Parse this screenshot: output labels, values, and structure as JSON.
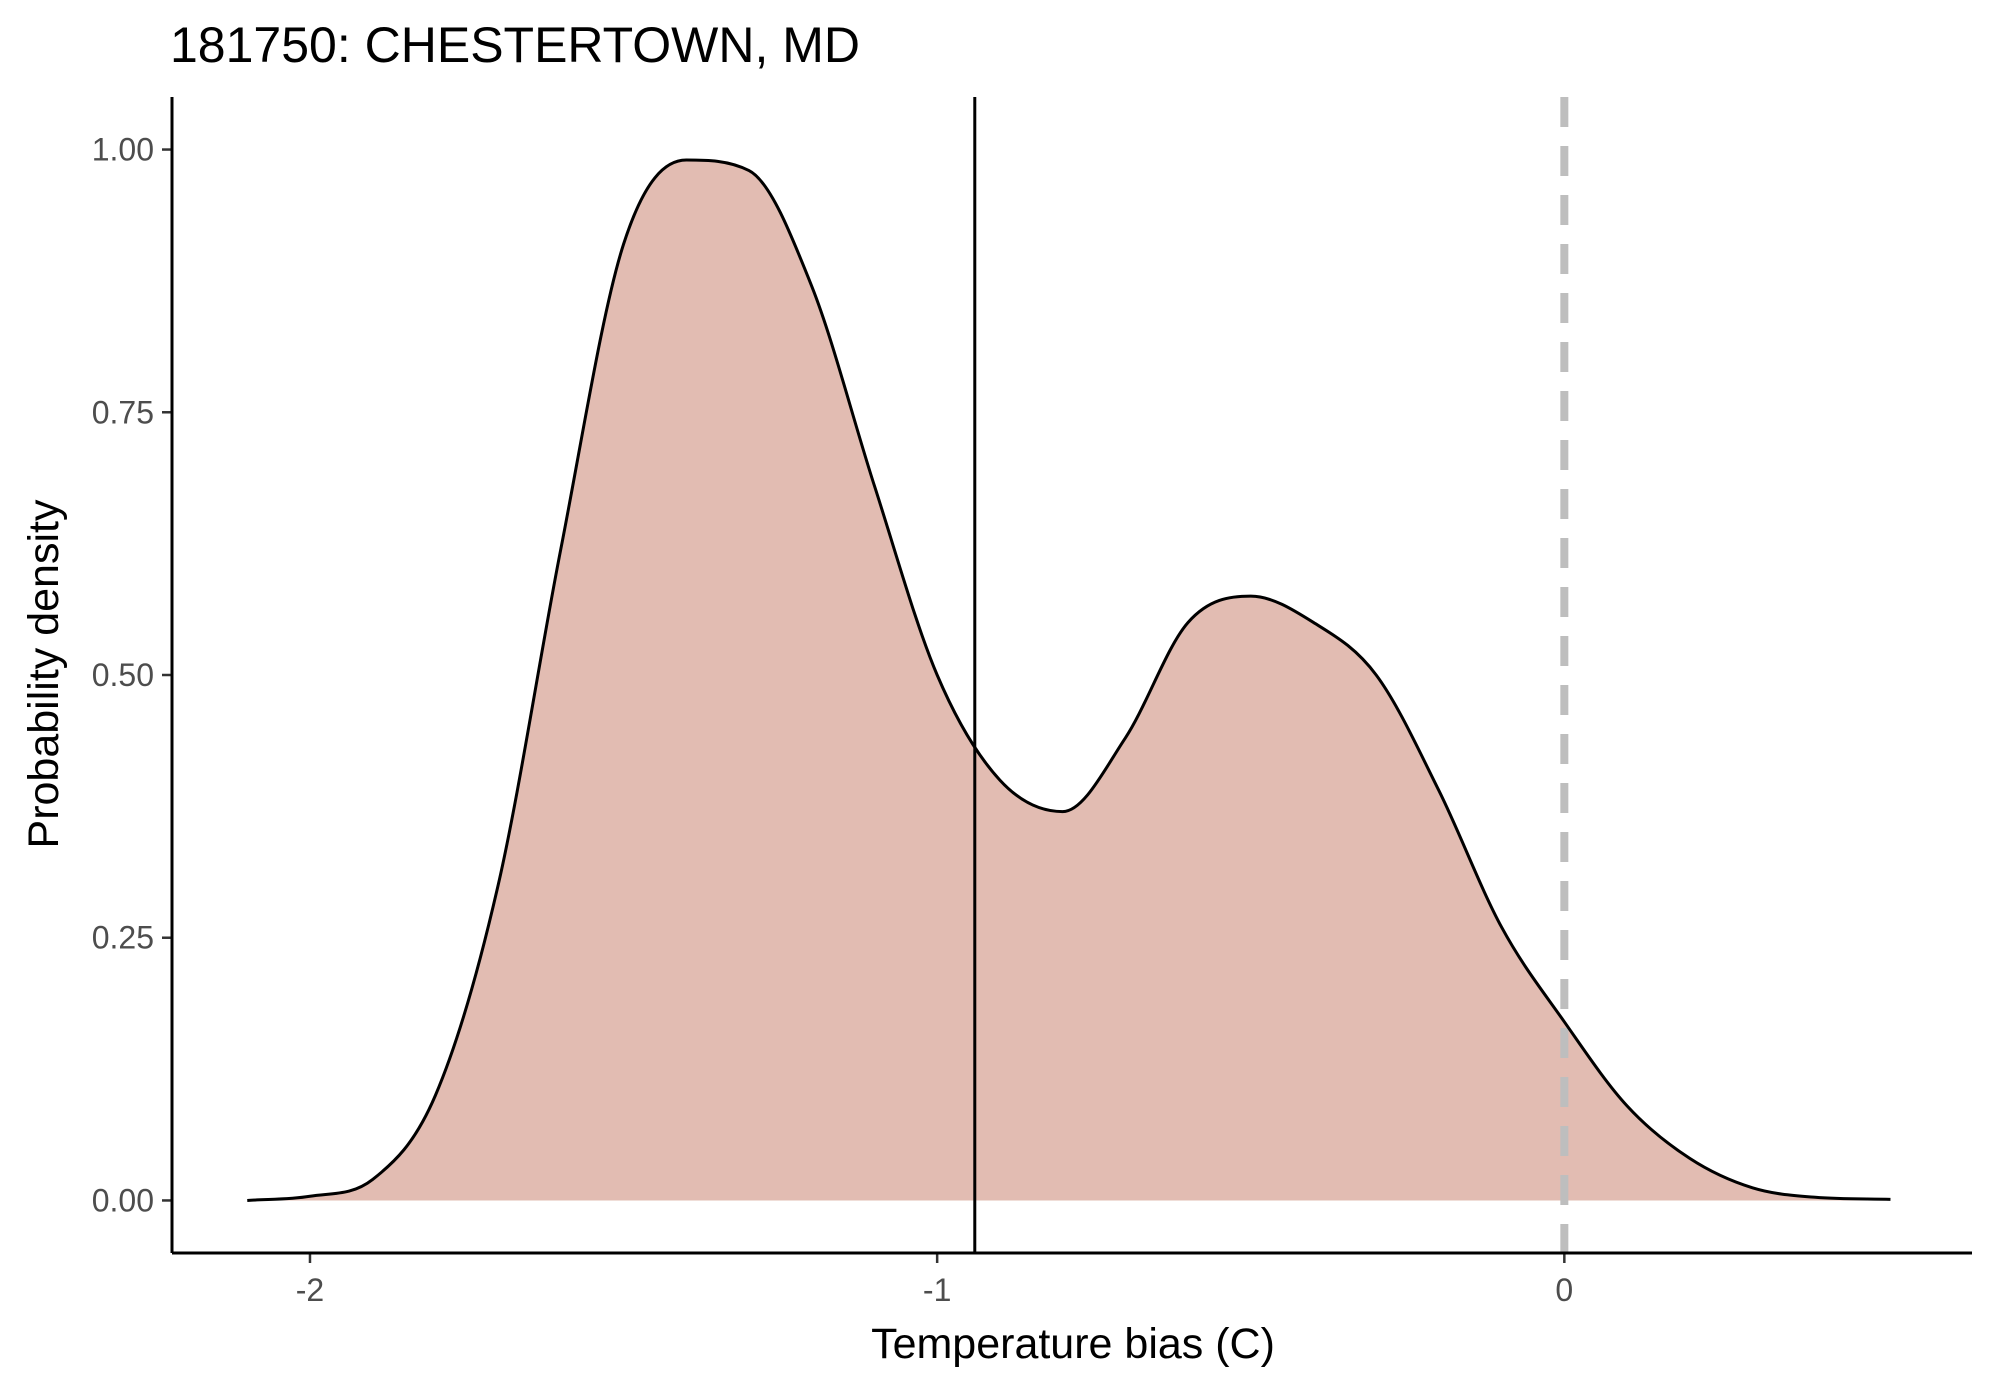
{
  "chart_data": {
    "type": "area",
    "title": "181750: CHESTERTOWN, MD",
    "xlabel": "Temperature bias (C)",
    "ylabel": "Probability density",
    "xlim": [
      -2.22,
      0.65
    ],
    "ylim": [
      -0.05,
      1.05
    ],
    "x_ticks": [
      -2,
      -1,
      0
    ],
    "x_tick_labels": [
      "-2",
      "-1",
      "0"
    ],
    "y_ticks": [
      0,
      0.25,
      0.5,
      0.75,
      1.0
    ],
    "y_tick_labels": [
      "0.00",
      "0.25",
      "0.50",
      "0.75",
      "1.00"
    ],
    "grid": false,
    "fill_color": "#e2bcb2",
    "line_color": "#000000",
    "reference_lines": [
      {
        "x": -0.94,
        "style": "solid",
        "color": "#000000"
      },
      {
        "x": 0,
        "style": "dashed",
        "color": "#bebebe"
      }
    ],
    "series": [
      {
        "x": [
          -2.1,
          -2.0,
          -1.9,
          -1.8,
          -1.7,
          -1.6,
          -1.5,
          -1.4,
          -1.3,
          -1.2,
          -1.1,
          -1.0,
          -0.9,
          -0.8,
          -0.7,
          -0.6,
          -0.5,
          -0.4,
          -0.3,
          -0.2,
          -0.1,
          0.0,
          0.1,
          0.2,
          0.3,
          0.4,
          0.52
        ],
        "values": [
          0.0,
          0.004,
          0.02,
          0.1,
          0.3,
          0.62,
          0.91,
          0.99,
          0.98,
          0.87,
          0.68,
          0.5,
          0.4,
          0.37,
          0.44,
          0.55,
          0.575,
          0.55,
          0.5,
          0.39,
          0.26,
          0.17,
          0.09,
          0.04,
          0.012,
          0.003,
          0.001
        ]
      }
    ]
  }
}
